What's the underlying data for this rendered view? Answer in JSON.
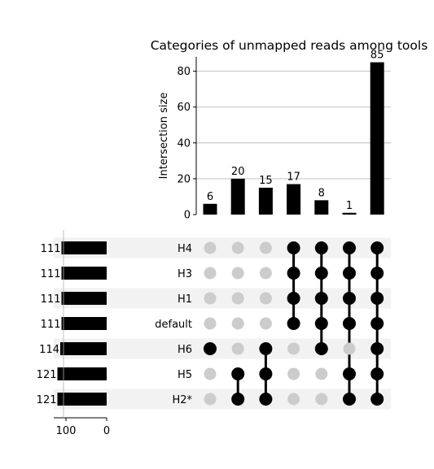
{
  "chart_data": {
    "type": "bar",
    "title": "Categories of unmapped reads among tools",
    "ylabel": "Intersection size",
    "ylim": [
      0,
      88
    ],
    "yticks": [
      0,
      20,
      40,
      60,
      80
    ],
    "grid": true,
    "sets": [
      "H4",
      "H3",
      "H1",
      "default",
      "H6",
      "H5",
      "H2*"
    ],
    "set_sizes": [
      111,
      111,
      111,
      111,
      114,
      121,
      121
    ],
    "set_size_ticks": [
      100,
      0
    ],
    "set_size_xlim": [
      0,
      130
    ],
    "intersections": [
      {
        "value": 6,
        "members": [
          "H6"
        ]
      },
      {
        "value": 20,
        "members": [
          "H5",
          "H2*"
        ]
      },
      {
        "value": 15,
        "members": [
          "H6",
          "H5",
          "H2*"
        ]
      },
      {
        "value": 17,
        "members": [
          "H4",
          "H3",
          "H1",
          "default"
        ]
      },
      {
        "value": 8,
        "members": [
          "H4",
          "H3",
          "H1",
          "default",
          "H6"
        ]
      },
      {
        "value": 1,
        "members": [
          "H4",
          "H3",
          "H1",
          "default",
          "H5",
          "H2*"
        ]
      },
      {
        "value": 85,
        "members": [
          "H4",
          "H3",
          "H1",
          "default",
          "H6",
          "H5",
          "H2*"
        ]
      }
    ],
    "colors": {
      "bar": "#000000",
      "active_dot": "#000000",
      "inactive_dot": "#cccccc",
      "stripe": "#f2f2f2",
      "grid": "#b0b0b0"
    }
  }
}
